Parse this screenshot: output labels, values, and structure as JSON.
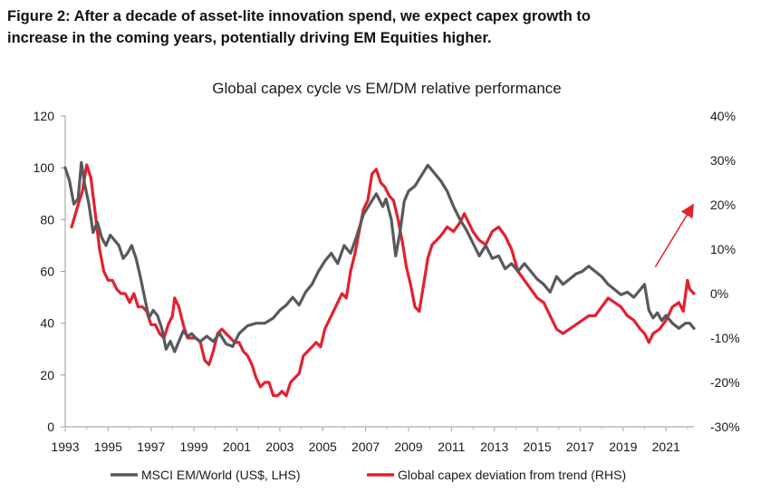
{
  "figure": {
    "title_line1": "Figure 2: After a decade of asset-lite innovation spend, we expect capex growth to",
    "title_line2": "increase in the coming years, potentially driving EM Equities higher."
  },
  "chart_data": {
    "type": "line",
    "title": "Global capex cycle vs EM/DM relative performance",
    "x_ticks": [
      "1993",
      "1995",
      "1997",
      "1999",
      "2001",
      "2003",
      "2005",
      "2007",
      "2009",
      "2011",
      "2013",
      "2015",
      "2017",
      "2019",
      "2021"
    ],
    "xlim": [
      1993.0,
      2022.3
    ],
    "left_axis": {
      "ticks": [
        "0",
        "20",
        "40",
        "60",
        "80",
        "100",
        "120"
      ],
      "ylim": [
        0,
        120
      ]
    },
    "right_axis": {
      "ticks": [
        "-30%",
        "-20%",
        "-10%",
        "0%",
        "10%",
        "20%",
        "30%",
        "40%"
      ],
      "ylim": [
        -30,
        40
      ]
    },
    "legend_position": "bottom",
    "annotation": "red upward arrow near 2020-2021 indicating expected rise",
    "series": [
      {
        "name": "MSCI EM/World (US$, LHS)",
        "axis": "left",
        "color": "#58595b",
        "points": [
          [
            1993.0,
            100
          ],
          [
            1993.2,
            95
          ],
          [
            1993.4,
            86
          ],
          [
            1993.6,
            88
          ],
          [
            1993.75,
            102
          ],
          [
            1993.9,
            94
          ],
          [
            1994.1,
            86
          ],
          [
            1994.3,
            75
          ],
          [
            1994.5,
            79
          ],
          [
            1994.7,
            73
          ],
          [
            1994.9,
            70
          ],
          [
            1995.1,
            74
          ],
          [
            1995.3,
            72
          ],
          [
            1995.5,
            70
          ],
          [
            1995.7,
            65
          ],
          [
            1995.9,
            67
          ],
          [
            1996.1,
            70
          ],
          [
            1996.3,
            65
          ],
          [
            1996.5,
            58
          ],
          [
            1996.7,
            50
          ],
          [
            1996.9,
            42
          ],
          [
            1997.1,
            45
          ],
          [
            1997.3,
            43
          ],
          [
            1997.5,
            38
          ],
          [
            1997.7,
            30
          ],
          [
            1997.9,
            33
          ],
          [
            1998.1,
            29
          ],
          [
            1998.3,
            33
          ],
          [
            1998.5,
            37
          ],
          [
            1998.7,
            35
          ],
          [
            1998.9,
            36
          ],
          [
            1999.1,
            34
          ],
          [
            1999.3,
            33
          ],
          [
            1999.6,
            35
          ],
          [
            1999.9,
            33
          ],
          [
            2000.2,
            36
          ],
          [
            2000.5,
            32
          ],
          [
            2000.8,
            31
          ],
          [
            2001.1,
            36
          ],
          [
            2001.5,
            39
          ],
          [
            2001.9,
            40
          ],
          [
            2002.3,
            40
          ],
          [
            2002.7,
            42
          ],
          [
            2003.0,
            45
          ],
          [
            2003.3,
            47
          ],
          [
            2003.6,
            50
          ],
          [
            2003.9,
            47
          ],
          [
            2004.2,
            52
          ],
          [
            2004.5,
            55
          ],
          [
            2004.8,
            60
          ],
          [
            2005.1,
            64
          ],
          [
            2005.4,
            67
          ],
          [
            2005.7,
            63
          ],
          [
            2006.0,
            70
          ],
          [
            2006.3,
            67
          ],
          [
            2006.6,
            74
          ],
          [
            2006.9,
            82
          ],
          [
            2007.2,
            86
          ],
          [
            2007.5,
            90
          ],
          [
            2007.8,
            85
          ],
          [
            2007.95,
            88
          ],
          [
            2008.2,
            80
          ],
          [
            2008.4,
            66
          ],
          [
            2008.6,
            75
          ],
          [
            2008.8,
            87
          ],
          [
            2009.0,
            91
          ],
          [
            2009.3,
            93
          ],
          [
            2009.6,
            97
          ],
          [
            2009.9,
            101
          ],
          [
            2010.2,
            98
          ],
          [
            2010.5,
            95
          ],
          [
            2010.8,
            91
          ],
          [
            2011.1,
            85
          ],
          [
            2011.4,
            80
          ],
          [
            2011.7,
            76
          ],
          [
            2012.0,
            71
          ],
          [
            2012.3,
            66
          ],
          [
            2012.6,
            70
          ],
          [
            2012.9,
            65
          ],
          [
            2013.2,
            66
          ],
          [
            2013.5,
            61
          ],
          [
            2013.8,
            63
          ],
          [
            2014.1,
            60
          ],
          [
            2014.4,
            63
          ],
          [
            2014.7,
            60
          ],
          [
            2015.0,
            57
          ],
          [
            2015.3,
            55
          ],
          [
            2015.6,
            52
          ],
          [
            2015.9,
            58
          ],
          [
            2016.2,
            55
          ],
          [
            2016.5,
            57
          ],
          [
            2016.8,
            59
          ],
          [
            2017.1,
            60
          ],
          [
            2017.4,
            62
          ],
          [
            2017.7,
            60
          ],
          [
            2018.0,
            58
          ],
          [
            2018.3,
            55
          ],
          [
            2018.6,
            53
          ],
          [
            2018.9,
            51
          ],
          [
            2019.2,
            52
          ],
          [
            2019.5,
            50
          ],
          [
            2019.8,
            53
          ],
          [
            2020.0,
            55
          ],
          [
            2020.2,
            45
          ],
          [
            2020.4,
            42
          ],
          [
            2020.6,
            44
          ],
          [
            2020.8,
            41
          ],
          [
            2021.0,
            43
          ],
          [
            2021.3,
            40
          ],
          [
            2021.6,
            38
          ],
          [
            2021.9,
            40
          ],
          [
            2022.1,
            40
          ],
          [
            2022.3,
            38
          ]
        ]
      },
      {
        "name": "Global capex deviation from trend (RHS)",
        "axis": "right",
        "color": "#e4202e",
        "points": [
          [
            1993.3,
            15
          ],
          [
            1993.6,
            20
          ],
          [
            1993.8,
            23
          ],
          [
            1994.0,
            29
          ],
          [
            1994.2,
            26
          ],
          [
            1994.4,
            18
          ],
          [
            1994.6,
            10
          ],
          [
            1994.8,
            5
          ],
          [
            1995.0,
            3
          ],
          [
            1995.2,
            3
          ],
          [
            1995.4,
            1
          ],
          [
            1995.6,
            0
          ],
          [
            1995.8,
            0
          ],
          [
            1996.0,
            -2
          ],
          [
            1996.2,
            0
          ],
          [
            1996.4,
            -3
          ],
          [
            1996.6,
            -3
          ],
          [
            1996.8,
            -4
          ],
          [
            1997.0,
            -7
          ],
          [
            1997.2,
            -7
          ],
          [
            1997.4,
            -9
          ],
          [
            1997.6,
            -10
          ],
          [
            1997.8,
            -7
          ],
          [
            1998.0,
            -5
          ],
          [
            1998.1,
            -1
          ],
          [
            1998.3,
            -3
          ],
          [
            1998.5,
            -7
          ],
          [
            1998.7,
            -10
          ],
          [
            1998.9,
            -10
          ],
          [
            1999.1,
            -10
          ],
          [
            1999.3,
            -11
          ],
          [
            1999.5,
            -15
          ],
          [
            1999.7,
            -16
          ],
          [
            1999.9,
            -13
          ],
          [
            2000.1,
            -9
          ],
          [
            2000.3,
            -8
          ],
          [
            2000.5,
            -9
          ],
          [
            2000.7,
            -10
          ],
          [
            2000.9,
            -11
          ],
          [
            2001.1,
            -11
          ],
          [
            2001.3,
            -13
          ],
          [
            2001.5,
            -14
          ],
          [
            2001.7,
            -16
          ],
          [
            2001.9,
            -19
          ],
          [
            2002.1,
            -21
          ],
          [
            2002.3,
            -20
          ],
          [
            2002.5,
            -20
          ],
          [
            2002.7,
            -23
          ],
          [
            2002.9,
            -23
          ],
          [
            2003.1,
            -22
          ],
          [
            2003.3,
            -23
          ],
          [
            2003.5,
            -20
          ],
          [
            2003.7,
            -19
          ],
          [
            2003.9,
            -18
          ],
          [
            2004.1,
            -14
          ],
          [
            2004.3,
            -13
          ],
          [
            2004.5,
            -12
          ],
          [
            2004.7,
            -11
          ],
          [
            2004.9,
            -12
          ],
          [
            2005.1,
            -8
          ],
          [
            2005.3,
            -6
          ],
          [
            2005.5,
            -4
          ],
          [
            2005.7,
            -2
          ],
          [
            2005.9,
            0
          ],
          [
            2006.1,
            -1
          ],
          [
            2006.3,
            5
          ],
          [
            2006.5,
            9
          ],
          [
            2006.7,
            14
          ],
          [
            2006.9,
            19
          ],
          [
            2007.1,
            21
          ],
          [
            2007.3,
            27
          ],
          [
            2007.5,
            28
          ],
          [
            2007.7,
            25
          ],
          [
            2007.9,
            24
          ],
          [
            2008.1,
            22
          ],
          [
            2008.3,
            21
          ],
          [
            2008.5,
            17
          ],
          [
            2008.7,
            12
          ],
          [
            2008.9,
            6
          ],
          [
            2009.1,
            2
          ],
          [
            2009.3,
            -3
          ],
          [
            2009.5,
            -4
          ],
          [
            2009.7,
            2
          ],
          [
            2009.9,
            8
          ],
          [
            2010.1,
            11
          ],
          [
            2010.3,
            12
          ],
          [
            2010.5,
            13
          ],
          [
            2010.8,
            15
          ],
          [
            2011.1,
            14
          ],
          [
            2011.4,
            16
          ],
          [
            2011.6,
            18
          ],
          [
            2011.8,
            16
          ],
          [
            2012.0,
            14
          ],
          [
            2012.3,
            12
          ],
          [
            2012.6,
            11
          ],
          [
            2012.9,
            14
          ],
          [
            2013.2,
            15
          ],
          [
            2013.5,
            13
          ],
          [
            2013.8,
            10
          ],
          [
            2014.1,
            5
          ],
          [
            2014.4,
            3
          ],
          [
            2014.7,
            1
          ],
          [
            2015.0,
            -1
          ],
          [
            2015.3,
            -2
          ],
          [
            2015.6,
            -5
          ],
          [
            2015.9,
            -8
          ],
          [
            2016.2,
            -9
          ],
          [
            2016.5,
            -8
          ],
          [
            2016.8,
            -7
          ],
          [
            2017.1,
            -6
          ],
          [
            2017.4,
            -5
          ],
          [
            2017.7,
            -5
          ],
          [
            2018.0,
            -3
          ],
          [
            2018.3,
            -1
          ],
          [
            2018.6,
            -2
          ],
          [
            2018.9,
            -3
          ],
          [
            2019.2,
            -5
          ],
          [
            2019.5,
            -6
          ],
          [
            2019.8,
            -8
          ],
          [
            2020.0,
            -9
          ],
          [
            2020.2,
            -11
          ],
          [
            2020.4,
            -9
          ],
          [
            2020.7,
            -8
          ],
          [
            2021.0,
            -6
          ],
          [
            2021.3,
            -3
          ],
          [
            2021.6,
            -2
          ],
          [
            2021.8,
            -4
          ],
          [
            2022.0,
            3
          ],
          [
            2022.1,
            1
          ],
          [
            2022.3,
            0
          ]
        ]
      }
    ]
  }
}
